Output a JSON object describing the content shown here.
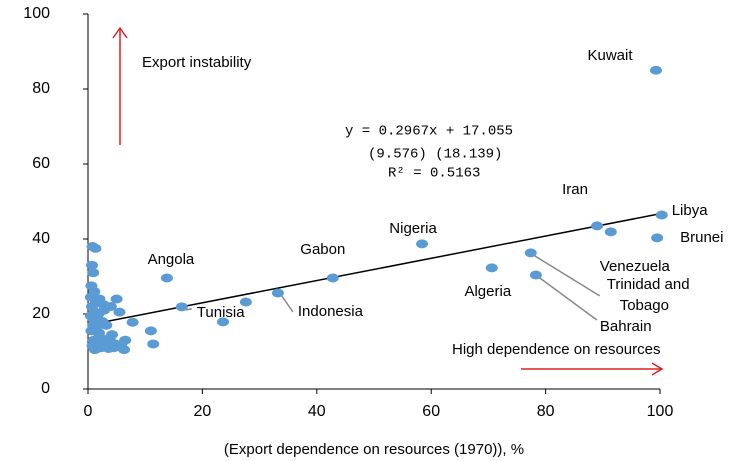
{
  "chart_data": {
    "type": "scatter",
    "x_label": "(Export dependence on resources (1970)), %",
    "xlim": [
      0,
      100
    ],
    "xticks": [
      0,
      20,
      40,
      60,
      80,
      100
    ],
    "ylim": [
      0,
      100
    ],
    "yticks": [
      0,
      20,
      40,
      60,
      80,
      100
    ],
    "color": "#5b9bd5",
    "trend": {
      "slope": 0.2967,
      "intercept": 17.055,
      "color": "#000000"
    },
    "annotations": [
      "y = 0.2967x + 17.055",
      "(9.576)    (18.139)",
      "R² = 0.5163",
      "Export instability",
      "High dependence on resources"
    ],
    "arrow_color": "#e02020",
    "x": [
      99.3,
      100.3,
      99.5,
      89.0,
      91.4,
      77.4,
      78.3,
      70.6,
      58.4,
      42.8,
      33.2,
      16.4,
      13.8,
      23.6,
      27.6,
      11.0,
      11.4,
      7.8,
      6.5,
      6.3,
      5.5,
      5.0,
      4.8,
      4.5,
      4.0,
      3.8,
      3.5,
      3.2,
      3.0,
      2.8,
      2.5,
      2.3,
      2.0,
      2.0,
      1.8,
      1.6,
      1.5,
      1.4,
      1.2,
      1.1,
      1.0,
      1.0,
      0.9,
      0.8,
      0.8,
      0.7,
      0.7,
      0.6,
      0.6,
      0.5,
      0.5,
      1.3,
      2.2,
      3.6,
      5.8,
      1.9,
      2.7,
      1.2,
      0.9,
      4.2
    ],
    "y": [
      85.0,
      46.4,
      40.3,
      43.5,
      41.9,
      36.3,
      30.4,
      32.3,
      38.7,
      29.6,
      25.6,
      21.9,
      29.6,
      17.9,
      23.2,
      15.5,
      12.0,
      17.8,
      13.0,
      10.5,
      20.5,
      24.0,
      12.0,
      11.0,
      22.0,
      13.5,
      11.5,
      17.0,
      12.5,
      21.0,
      18.0,
      11.0,
      24.0,
      14.0,
      20.0,
      12.0,
      16.5,
      23.0,
      10.5,
      26.0,
      18.5,
      13.0,
      31.0,
      38.0,
      11.5,
      33.0,
      22.0,
      27.5,
      15.5,
      19.5,
      24.5,
      37.5,
      12.5,
      10.8,
      11.8,
      15.0,
      22.5,
      20.5,
      17.0,
      14.5
    ],
    "point_labels": [
      "Kuwait",
      "Libya",
      "Brunei",
      "Iran",
      "Venezuela",
      "Trinidad and Tobago",
      "Bahrain",
      "Algeria",
      "Nigeria",
      "Gabon",
      "Indonesia",
      "Tunisia",
      "Angola",
      null,
      null,
      null,
      null,
      null,
      null,
      null,
      null,
      null,
      null,
      null,
      null,
      null,
      null,
      null,
      null,
      null,
      null,
      null,
      null,
      null,
      null,
      null,
      null,
      null,
      null,
      null,
      null,
      null,
      null,
      null,
      null,
      null,
      null,
      null,
      null,
      null,
      null,
      null,
      null,
      null,
      null,
      null,
      null,
      null,
      null,
      null
    ]
  }
}
